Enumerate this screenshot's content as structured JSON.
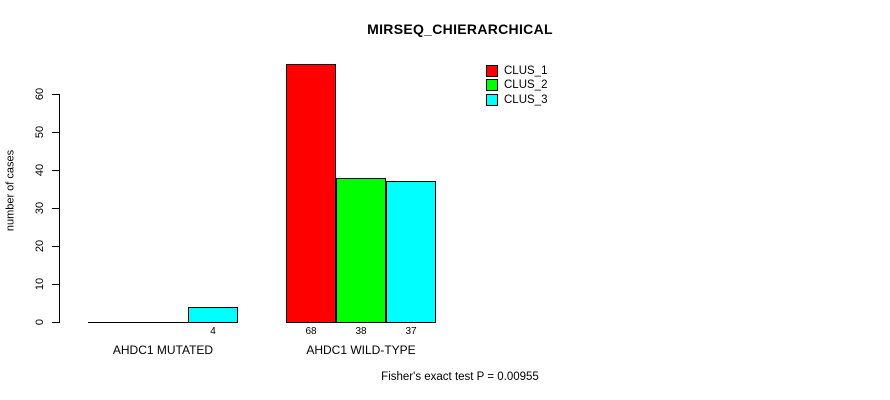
{
  "chart_data": {
    "type": "bar",
    "title": "MIRSEQ_CHIERARCHICAL",
    "ylabel": "number of cases",
    "xlabel": "",
    "categories": [
      "AHDC1 MUTATED",
      "AHDC1 WILD-TYPE"
    ],
    "series": [
      {
        "name": "CLUS_1",
        "color": "#ff0000",
        "values": [
          0,
          68
        ]
      },
      {
        "name": "CLUS_2",
        "color": "#00ff00",
        "values": [
          0,
          38
        ]
      },
      {
        "name": "CLUS_3",
        "color": "#00ffff",
        "values": [
          4,
          37
        ]
      }
    ],
    "value_labels": [
      [
        "",
        "",
        "4"
      ],
      [
        "68",
        "38",
        "37"
      ]
    ],
    "yticks": [
      0,
      10,
      20,
      30,
      40,
      50,
      60
    ],
    "ylim": [
      0,
      68
    ],
    "grid": false,
    "legend_position": "top-right",
    "annotation": "Fisher's exact test P = 0.00955"
  }
}
